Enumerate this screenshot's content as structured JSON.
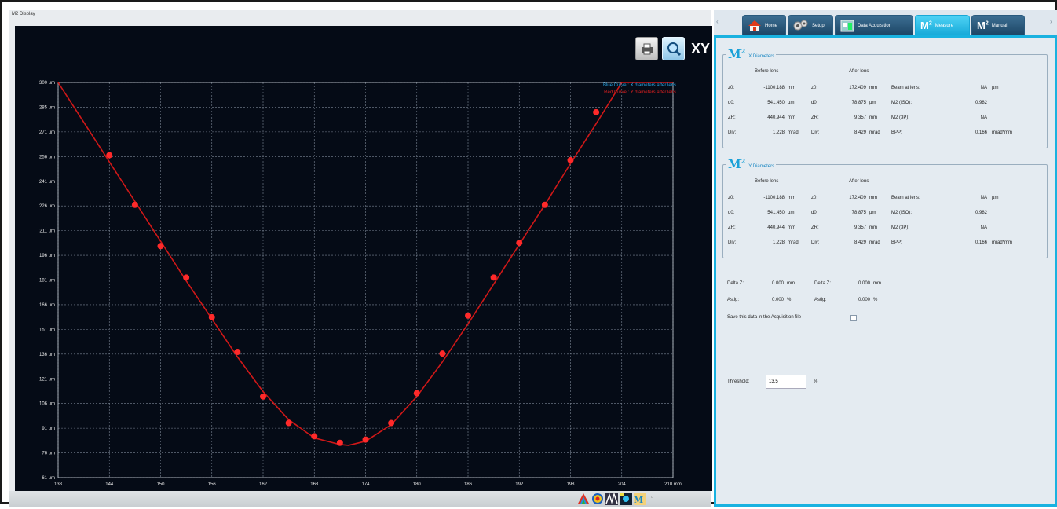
{
  "window": {
    "title": "M2 Display"
  },
  "toolbar": {
    "print_icon": "printer-icon",
    "zoom_icon": "magnifier-icon",
    "xy_label": "XY"
  },
  "legend": {
    "blue": "Blue Curve : X diameters after lens",
    "red": "Red Curve : Y diameters after lens"
  },
  "colors": {
    "plot_bg": "#050b16",
    "curve": "#d01818",
    "point": "#ff2a2a",
    "tab_active": "#16a9d8",
    "accent": "#1aa1d8"
  },
  "chart_data": {
    "type": "scatter",
    "x_unit": "mm",
    "y_unit": "um",
    "xlim": [
      138,
      210
    ],
    "ylim": [
      61,
      300
    ],
    "x_ticks": [
      "138",
      "144",
      "150",
      "156",
      "162",
      "168",
      "174",
      "180",
      "186",
      "192",
      "198",
      "204",
      "210 mm"
    ],
    "y_ticks": [
      "61 um",
      "76 um",
      "91 um",
      "106 um",
      "121 um",
      "136 um",
      "151 um",
      "166 um",
      "181 um",
      "196 um",
      "211 um",
      "226 um",
      "241 um",
      "256 um",
      "271 um",
      "285 um",
      "300 um"
    ],
    "grid": true,
    "legend_position": "top-right",
    "series": [
      {
        "points": [
          [
            144,
            256
          ],
          [
            147,
            226
          ],
          [
            150,
            201
          ],
          [
            153,
            182
          ],
          [
            156,
            158
          ],
          [
            159,
            137
          ],
          [
            162,
            110
          ],
          [
            165,
            94
          ],
          [
            168,
            86
          ],
          [
            171,
            82
          ],
          [
            174,
            84
          ],
          [
            177,
            94
          ],
          [
            180,
            112
          ],
          [
            183,
            136
          ],
          [
            186,
            159
          ],
          [
            189,
            182
          ],
          [
            192,
            203
          ],
          [
            195,
            226
          ],
          [
            198,
            253
          ],
          [
            201,
            282
          ]
        ]
      }
    ],
    "fit_curve": [
      [
        138,
        300
      ],
      [
        141,
        276
      ],
      [
        144,
        252
      ],
      [
        147,
        228
      ],
      [
        150,
        204
      ],
      [
        153,
        180
      ],
      [
        156,
        157
      ],
      [
        159,
        134
      ],
      [
        162,
        113
      ],
      [
        165,
        96
      ],
      [
        168,
        85
      ],
      [
        171,
        81
      ],
      [
        172,
        80.5
      ],
      [
        174,
        83
      ],
      [
        177,
        93
      ],
      [
        180,
        110
      ],
      [
        183,
        131
      ],
      [
        186,
        154
      ],
      [
        189,
        178
      ],
      [
        192,
        202
      ],
      [
        195,
        226
      ],
      [
        198,
        251
      ],
      [
        201,
        275
      ],
      [
        204,
        300
      ],
      [
        210,
        300
      ]
    ]
  },
  "bottom_bar": {
    "icons": [
      "3d-view-icon",
      "beam-profile-icon",
      "cross-section-icon",
      "spot-map-icon",
      "m2-icon"
    ],
    "right_glyph": "▫"
  },
  "tabs": [
    {
      "label": "Home",
      "icon": "house-icon"
    },
    {
      "label": "Setup",
      "icon": "gears-icon"
    },
    {
      "label": "Data Acquisition",
      "icon": "acquisition-icon"
    },
    {
      "label": "Measure",
      "icon": "m2-icon"
    },
    {
      "label": "Manual",
      "icon": "m2-icon"
    }
  ],
  "nav": {
    "left": "‹",
    "right": "›"
  },
  "m2_symbol": "M",
  "m2_sup": "2",
  "x_group": {
    "title": "X Diameters",
    "before_label": "Before lens",
    "after_label": "After lens",
    "rows": [
      {
        "l1": "z0:",
        "v1": "-1100.188",
        "u1": "mm",
        "l2": "z0:",
        "v2": "172.409",
        "u2": "mm",
        "l3": "Beam at lens:",
        "v3": "NA",
        "u3": "µm"
      },
      {
        "l1": "d0:",
        "v1": "541.450",
        "u1": "µm",
        "l2": "d0:",
        "v2": "78.875",
        "u2": "µm",
        "l3": "M2 (ISO):",
        "v3": "0.982",
        "u3": ""
      },
      {
        "l1": "ZR:",
        "v1": "440.944",
        "u1": "mm",
        "l2": "ZR:",
        "v2": "9.357",
        "u2": "mm",
        "l3": "M2 (3P):",
        "v3": "NA",
        "u3": ""
      },
      {
        "l1": "Div:",
        "v1": "1.228",
        "u1": "mrad",
        "l2": "Div:",
        "v2": "8.429",
        "u2": "mrad",
        "l3": "BPP:",
        "v3": "0.166",
        "u3": "mrad*mm"
      }
    ]
  },
  "y_group": {
    "title": "Y Diameters",
    "before_label": "Before lens",
    "after_label": "After lens",
    "rows": [
      {
        "l1": "z0:",
        "v1": "-1100.188",
        "u1": "mm",
        "l2": "z0:",
        "v2": "172.409",
        "u2": "mm",
        "l3": "Beam at lens:",
        "v3": "NA",
        "u3": "µm"
      },
      {
        "l1": "d0:",
        "v1": "541.450",
        "u1": "µm",
        "l2": "d0:",
        "v2": "78.875",
        "u2": "µm",
        "l3": "M2 (ISO):",
        "v3": "0.982",
        "u3": ""
      },
      {
        "l1": "ZR:",
        "v1": "440.944",
        "u1": "mm",
        "l2": "ZR:",
        "v2": "9.357",
        "u2": "mm",
        "l3": "M2 (3P):",
        "v3": "NA",
        "u3": ""
      },
      {
        "l1": "Div:",
        "v1": "1.228",
        "u1": "mrad",
        "l2": "Div:",
        "v2": "8.429",
        "u2": "mrad",
        "l3": "BPP:",
        "v3": "0.166",
        "u3": "mrad*mm"
      }
    ]
  },
  "delta": {
    "dz_label": "Delta Z:",
    "dz_value": "0.000",
    "dz_unit": "mm",
    "dz2_label": "Delta Z:",
    "dz2_value": "0.000",
    "dz2_unit": "mm",
    "astig_label": "Astig:",
    "astig_value": "0.000",
    "astig_unit": "%",
    "astig2_label": "Astig:",
    "astig2_value": "0.000",
    "astig2_unit": "%"
  },
  "save": {
    "label": "Save this data in the Acquisition file",
    "checked": false
  },
  "threshold": {
    "label": "Threshold:",
    "value": "13.5",
    "unit": "%"
  }
}
